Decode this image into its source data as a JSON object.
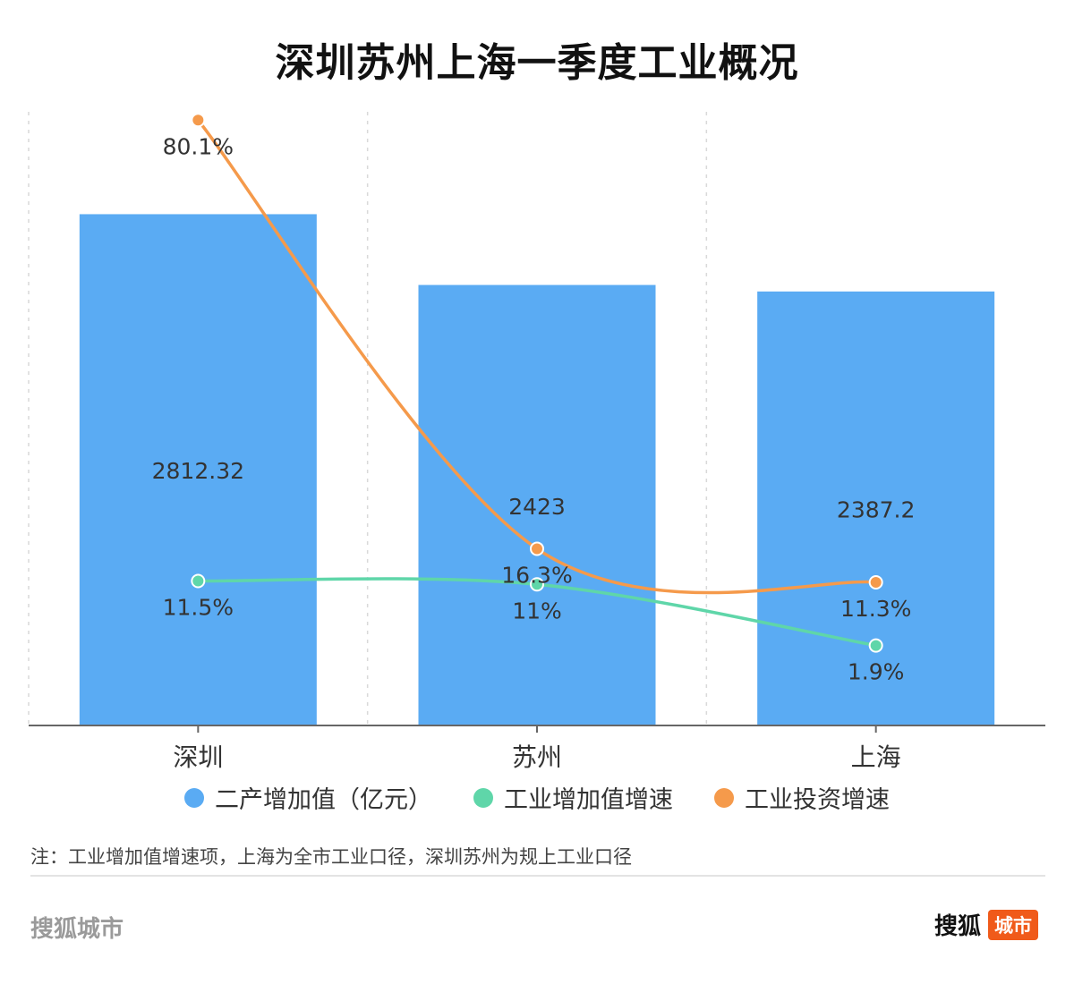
{
  "chart_data": {
    "type": "bar",
    "title": "深圳苏州上海一季度工业概况",
    "categories": [
      "深圳",
      "苏州",
      "上海"
    ],
    "series": [
      {
        "name": "二产增加值（亿元）",
        "type": "bar",
        "axis": "left",
        "color": "#5aabf3",
        "values": [
          2812.32,
          2423,
          2387.2
        ],
        "labels": [
          "2812.32",
          "2423",
          "2387.2"
        ]
      },
      {
        "name": "工业增加值增速",
        "type": "line",
        "axis": "right",
        "color": "#5fd6a9",
        "values": [
          11.5,
          11,
          1.9
        ],
        "labels": [
          "11.5%",
          "11%",
          "1.9%"
        ]
      },
      {
        "name": "工业投资增速",
        "type": "line",
        "axis": "right",
        "color": "#f59a4b",
        "values": [
          80.1,
          16.3,
          11.3
        ],
        "labels": [
          "80.1%",
          "16.3%",
          "11.3%"
        ]
      }
    ],
    "ylim_left": [
      0,
      3400
    ],
    "ylim_right": [
      -10,
      82
    ],
    "legend_position": "bottom",
    "grid": "vertical-dashed"
  },
  "note": "注：工业增加值增速项，上海为全市工业口径，深圳苏州为规上工业口径",
  "footer": {
    "source": "搜狐城市",
    "brand_main": "搜狐",
    "brand_tag": "城市"
  }
}
